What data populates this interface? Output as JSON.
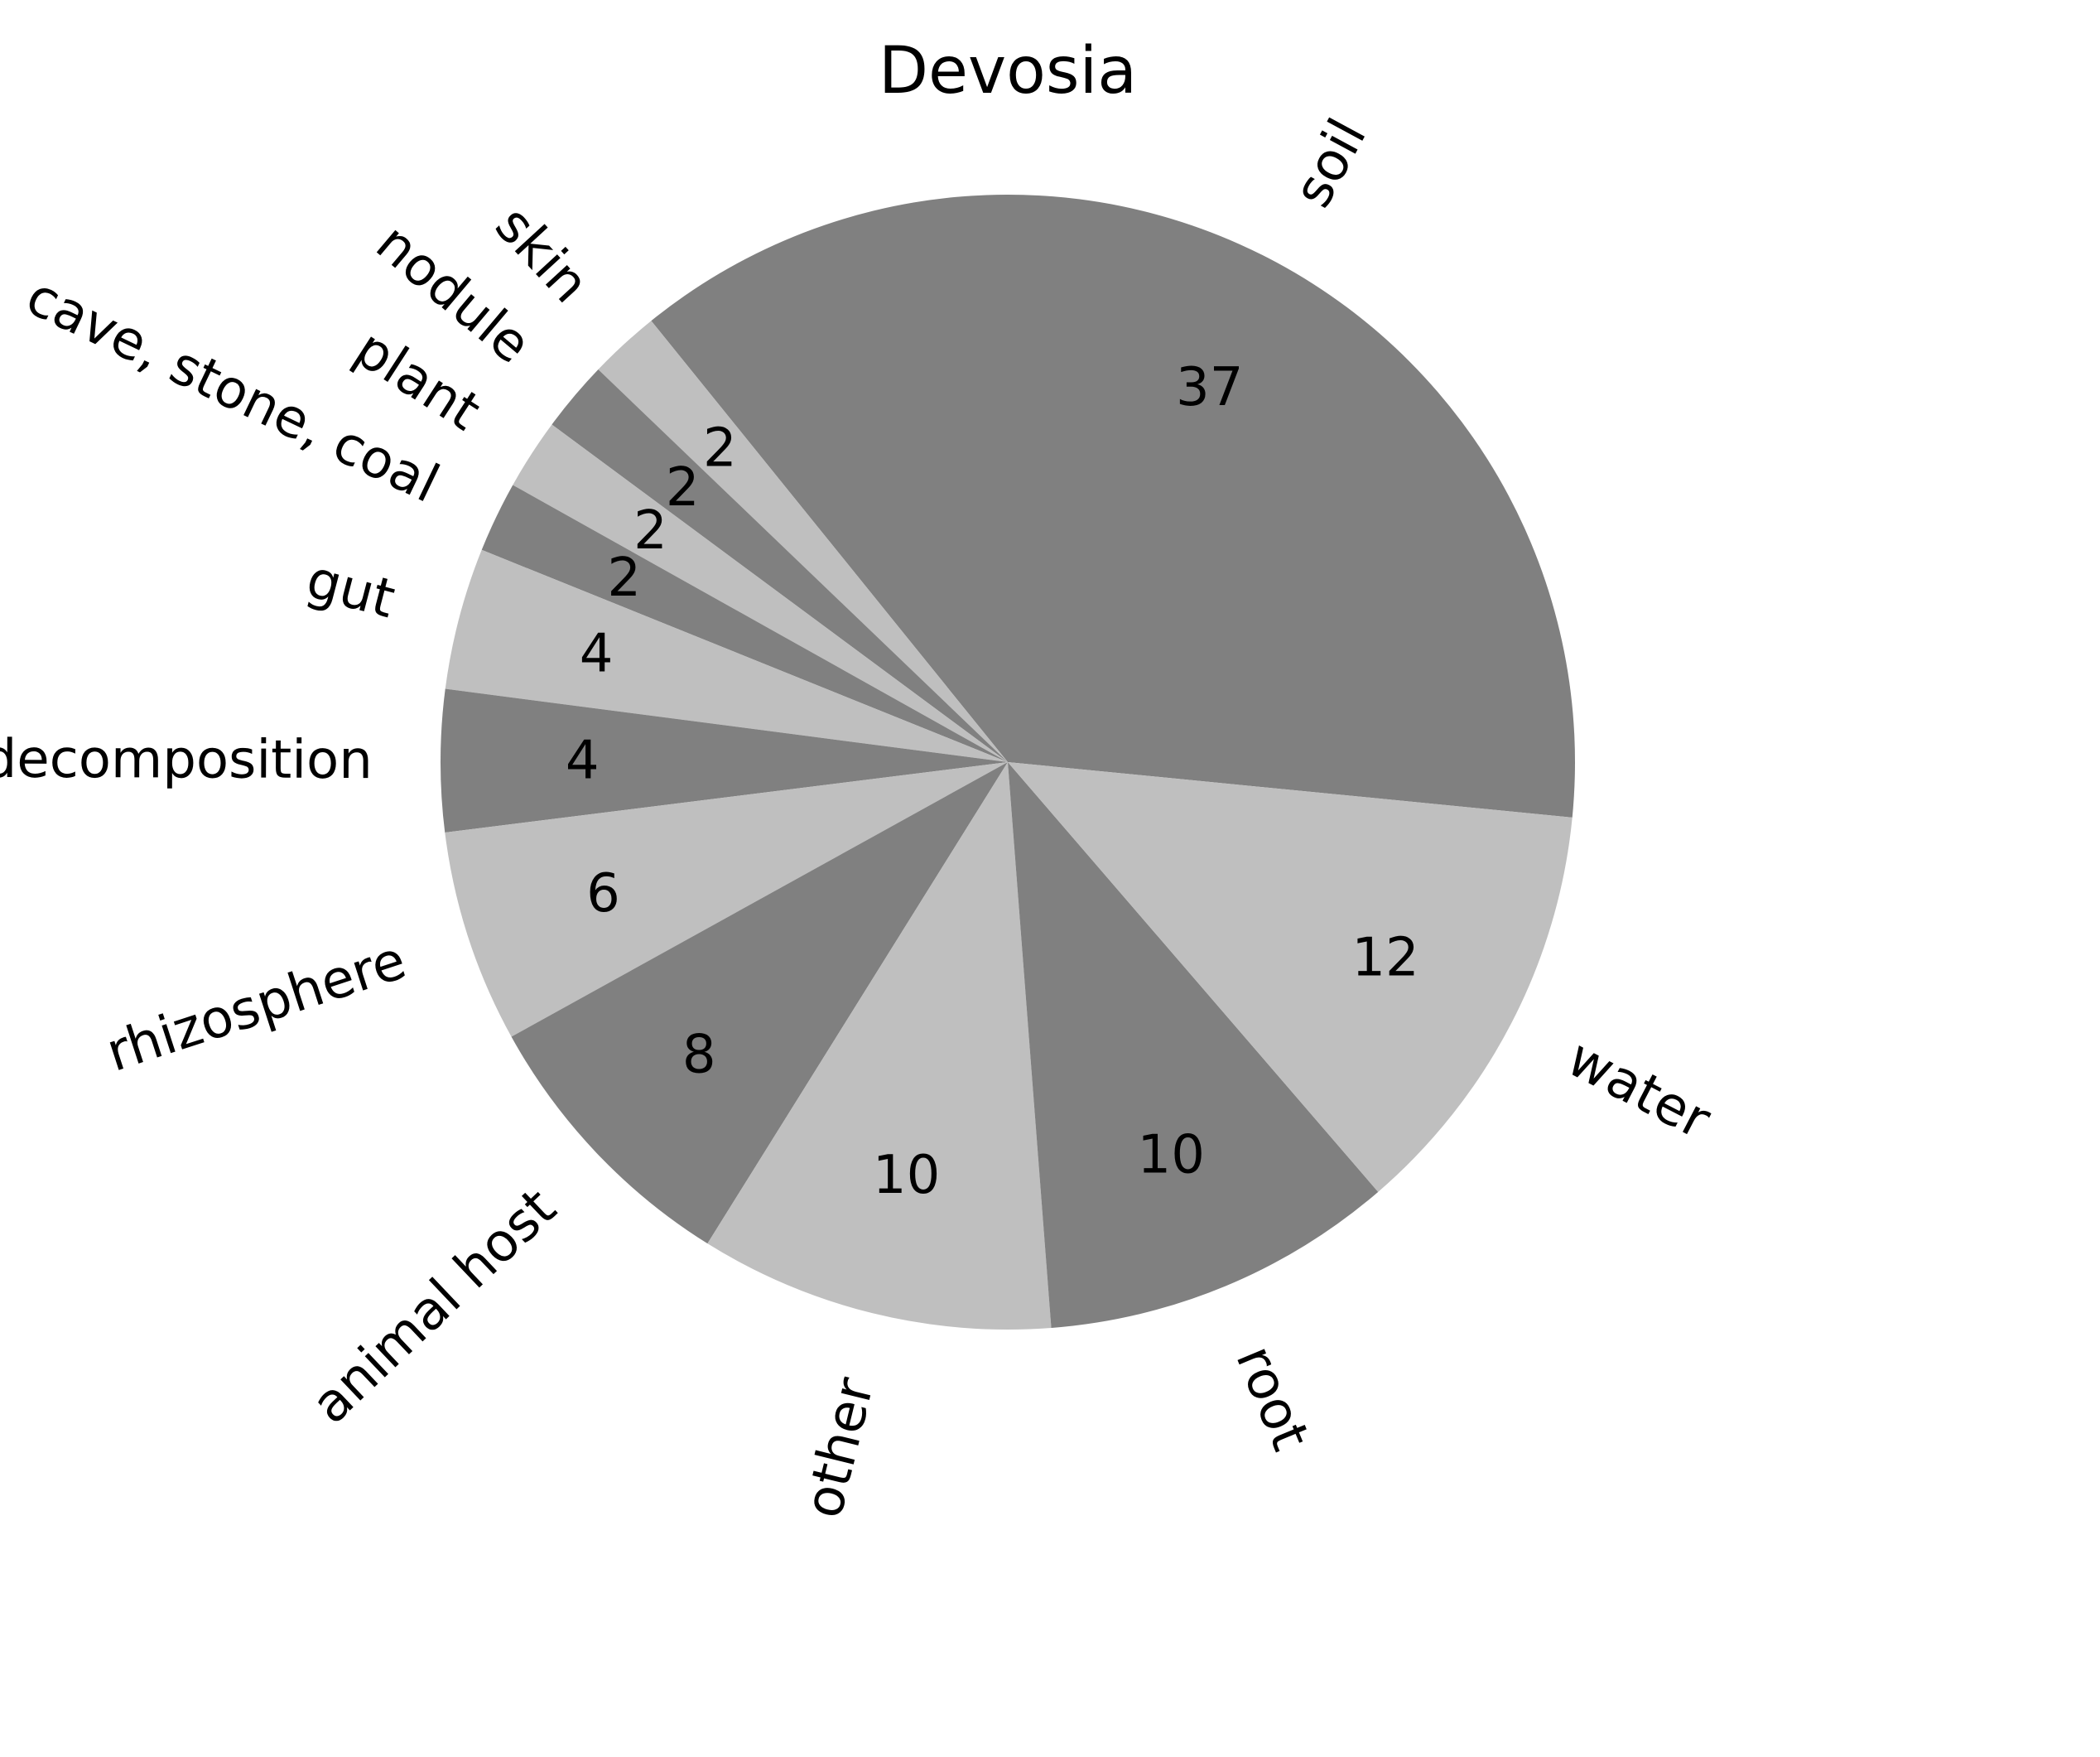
{
  "chart_data": {
    "type": "pie",
    "title": "Devosia",
    "slices": [
      {
        "label": "soil",
        "value": 37,
        "color": "#808080"
      },
      {
        "label": "skin",
        "value": 2,
        "color": "#bfbfbf"
      },
      {
        "label": "nodule",
        "value": 2,
        "color": "#808080"
      },
      {
        "label": "plant",
        "value": 2,
        "color": "#bfbfbf"
      },
      {
        "label": "cave, stone, coal",
        "value": 2,
        "color": "#808080"
      },
      {
        "label": "gut",
        "value": 4,
        "color": "#bfbfbf"
      },
      {
        "label": "decomposition",
        "value": 4,
        "color": "#808080"
      },
      {
        "label": "rhizosphere",
        "value": 6,
        "color": "#bfbfbf"
      },
      {
        "label": "animal host",
        "value": 8,
        "color": "#808080"
      },
      {
        "label": "other",
        "value": 10,
        "color": "#bfbfbf"
      },
      {
        "label": "root",
        "value": 10,
        "color": "#808080"
      },
      {
        "label": "water",
        "value": 12,
        "color": "#bfbfbf"
      }
    ]
  }
}
